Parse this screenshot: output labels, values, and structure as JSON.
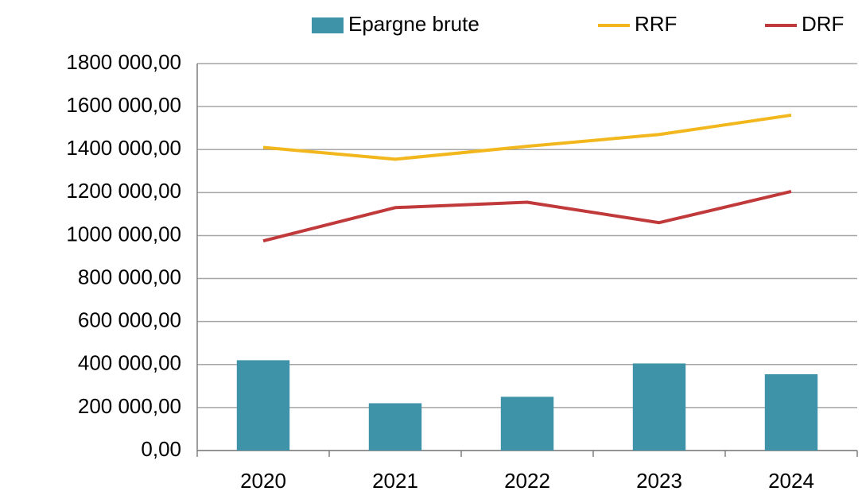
{
  "chart_data": {
    "type": "bar_line",
    "categories": [
      "2020",
      "2021",
      "2022",
      "2023",
      "2024"
    ],
    "series": [
      {
        "name": "Epargne brute",
        "type": "bar",
        "color": "#3f93a8",
        "values": [
          420000,
          220000,
          250000,
          405000,
          355000
        ]
      },
      {
        "name": "RRF",
        "type": "line",
        "color": "#f2b71c",
        "values": [
          1410000,
          1355000,
          1415000,
          1470000,
          1560000
        ]
      },
      {
        "name": "DRF",
        "type": "line",
        "color": "#c0393b",
        "values": [
          975000,
          1130000,
          1155000,
          1060000,
          1205000
        ]
      }
    ],
    "ylim": [
      0,
      1800000
    ],
    "yticks": [
      {
        "value": 0,
        "label": "0,00"
      },
      {
        "value": 200000,
        "label": "200 000,00"
      },
      {
        "value": 400000,
        "label": "400 000,00"
      },
      {
        "value": 600000,
        "label": "600 000,00"
      },
      {
        "value": 800000,
        "label": "800 000,00"
      },
      {
        "value": 1000000,
        "label": "1000 000,00"
      },
      {
        "value": 1200000,
        "label": "1200 000,00"
      },
      {
        "value": 1400000,
        "label": "1400 000,00"
      },
      {
        "value": 1600000,
        "label": "1600 000,00"
      },
      {
        "value": 1800000,
        "label": "1800 000,00"
      }
    ],
    "grid": true,
    "legend": "top"
  }
}
